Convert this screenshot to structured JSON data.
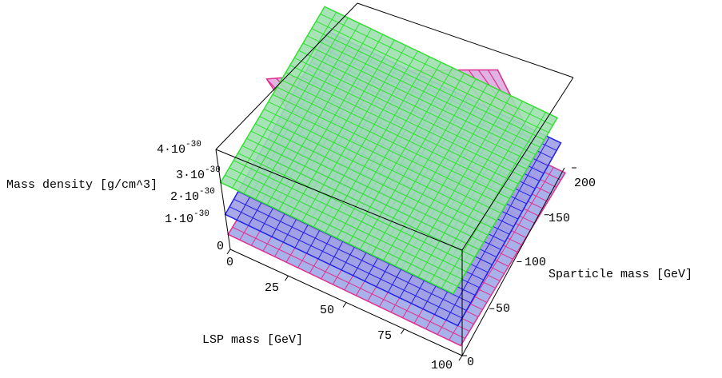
{
  "chart_data": {
    "type": "surface3d",
    "zlabel": "Mass density [g/cm^3]",
    "xlabel": "LSP mass [GeV]",
    "ylabel": "Sparticle mass [GeV]",
    "x_ticks": [
      "0",
      "25",
      "50",
      "75",
      "100"
    ],
    "y_ticks": [
      "0",
      "50",
      "100",
      "150",
      "200"
    ],
    "z_ticks": [
      {
        "mant": "0",
        "exp": ""
      },
      {
        "mant": "1·10",
        "exp": "-30"
      },
      {
        "mant": "2·10",
        "exp": "-30"
      },
      {
        "mant": "3·10",
        "exp": "-30"
      },
      {
        "mant": "4·10",
        "exp": "-30"
      }
    ],
    "xlim": [
      0,
      100
    ],
    "ylim": [
      0,
      200
    ],
    "zlim": [
      0,
      4e-30
    ],
    "surfaces": [
      {
        "fill": "#9fa8e8",
        "mesh": "#e0308e",
        "offset": 0.0,
        "slope": 0.15,
        "wall": true
      },
      {
        "fill": "#a0a0e6",
        "mesh": "#2020e8",
        "offset": 0.3,
        "slope": 0.05,
        "wall": false
      },
      {
        "fill": "#9fe0b0",
        "mesh": "#30e030",
        "offset": 0.55,
        "slope": 0.12,
        "wall": false
      }
    ],
    "colors": {
      "axis": "#000000",
      "pink_mesh": "#e0308e",
      "blue_mesh": "#2020e8",
      "green_mesh": "#30e030"
    }
  }
}
